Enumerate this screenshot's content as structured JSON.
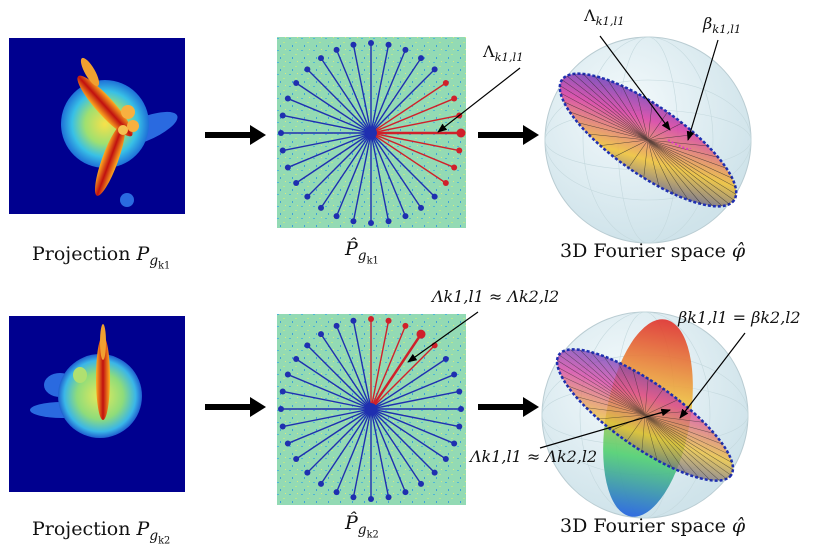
{
  "colors": {
    "projection_bg": "#00008f",
    "fourier_bg": "#8fd9b0",
    "ray_blue": "#1f2fb0",
    "ray_red": "#d0202a",
    "arrow": "#000000"
  },
  "rows": [
    {
      "projection_caption": "Projection",
      "projection_symbol": "P",
      "projection_sub": "g",
      "projection_subsub": "k1",
      "fourier_caption_symbol": "P̂",
      "fourier_caption_sub": "g",
      "fourier_caption_subsub": "k1",
      "space_caption": "3D Fourier space",
      "space_symbol": "φ̂",
      "label_lambda": "Λ",
      "label_lambda_sub": "k1,l1",
      "label_lambda_slice": "Λ",
      "label_lambda_slice_sub": "k1,l1",
      "label_beta": "β",
      "label_beta_sub": "k1,l1"
    },
    {
      "projection_caption": "Projection",
      "projection_symbol": "P",
      "projection_sub": "g",
      "projection_subsub": "k2",
      "fourier_caption_symbol": "P̂",
      "fourier_caption_sub": "g",
      "fourier_caption_subsub": "k2",
      "space_caption": "3D Fourier space",
      "space_symbol": "φ̂",
      "label_approx": "Λk1,l1 ≈ Λk2,l2",
      "label_approx_bottom": "Λk1,l1 ≈ Λk2,l2",
      "label_beta_eq": "βk1,l1 = βk2,l2"
    }
  ]
}
